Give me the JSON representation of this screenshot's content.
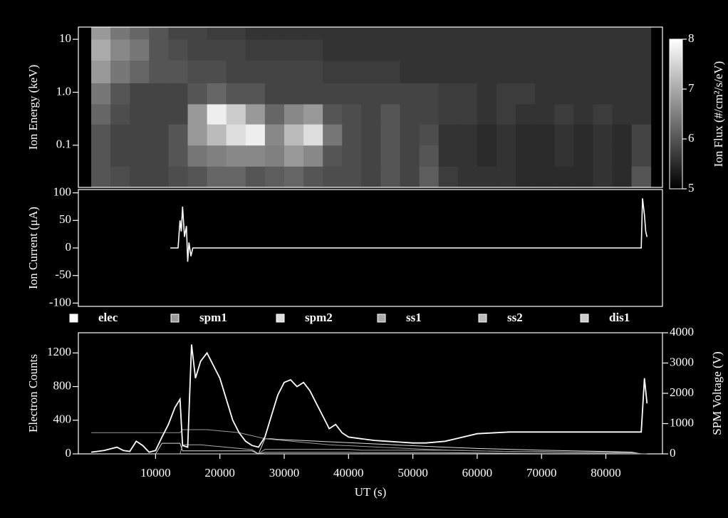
{
  "chart_data": [
    {
      "type": "heatmap",
      "ylabel": "Ion Energy (keV)",
      "colorbar_label": "Ion Flux (#/cm²/s/eV)",
      "xlim": [
        -2000,
        88800
      ],
      "ylim": [
        0.016,
        17
      ],
      "log_y": true,
      "yticks": [
        10,
        {
          "value": 1,
          "label": "1.0"
        },
        0.1
      ],
      "x_bins": [
        0,
        3000,
        6000,
        9000,
        12000,
        15000,
        18000,
        21000,
        24000,
        27000,
        30000,
        33000,
        36000,
        39000,
        42000,
        45000,
        48000,
        51000,
        54000,
        57000,
        60000,
        63000,
        66000,
        69000,
        72000,
        75000,
        78000,
        81000,
        84000,
        87000
      ],
      "y_bins": [
        0.016,
        0.04,
        0.1,
        0.25,
        0.6,
        1.5,
        4,
        10,
        17
      ],
      "z": [
        [
          6.0,
          5.9,
          5.8,
          5.8,
          5.9,
          6.0,
          6.2,
          6.2,
          6.0,
          6.1,
          6.2,
          6.0,
          5.9,
          5.9,
          5.8,
          6.0,
          5.8,
          6.1,
          5.7,
          5.6,
          5.6,
          5.6,
          5.5,
          5.5,
          5.5,
          5.5,
          5.6,
          5.5,
          6.0
        ],
        [
          6.0,
          5.8,
          5.8,
          5.8,
          6.0,
          6.4,
          6.5,
          6.6,
          6.6,
          6.5,
          6.8,
          6.6,
          6.0,
          5.9,
          5.8,
          6.0,
          5.8,
          6.0,
          5.6,
          5.6,
          5.5,
          5.6,
          5.5,
          5.5,
          5.6,
          5.5,
          5.6,
          5.5,
          5.8
        ],
        [
          6.0,
          5.8,
          5.8,
          5.8,
          6.0,
          6.8,
          7.2,
          7.6,
          7.8,
          6.6,
          7.2,
          7.6,
          6.4,
          5.9,
          5.8,
          6.0,
          5.8,
          5.9,
          5.6,
          5.6,
          5.5,
          5.6,
          5.5,
          5.5,
          5.6,
          5.5,
          5.6,
          5.5,
          5.8
        ],
        [
          6.2,
          5.9,
          5.8,
          5.8,
          5.8,
          6.8,
          7.8,
          7.4,
          6.8,
          6.2,
          6.6,
          6.8,
          6.0,
          5.9,
          5.8,
          6.0,
          5.8,
          5.8,
          5.7,
          5.7,
          5.6,
          5.7,
          5.6,
          5.6,
          5.7,
          5.6,
          5.7,
          5.6,
          5.6
        ],
        [
          6.4,
          6.0,
          5.8,
          5.8,
          5.8,
          6.0,
          6.2,
          6.0,
          6.0,
          5.8,
          5.8,
          5.8,
          5.8,
          5.8,
          5.8,
          5.8,
          5.8,
          5.8,
          5.7,
          5.7,
          5.6,
          5.7,
          5.7,
          5.6,
          5.6,
          5.6,
          5.6,
          5.6,
          5.6
        ],
        [
          6.8,
          6.4,
          6.2,
          6.0,
          6.0,
          5.9,
          5.9,
          5.8,
          5.8,
          5.8,
          5.8,
          5.8,
          5.7,
          5.7,
          5.7,
          5.7,
          5.6,
          5.6,
          5.6,
          5.6,
          5.6,
          5.6,
          5.6,
          5.6,
          5.6,
          5.6,
          5.6,
          5.6,
          5.6
        ],
        [
          7.0,
          6.6,
          6.4,
          6.0,
          5.9,
          5.8,
          5.8,
          5.8,
          5.7,
          5.7,
          5.7,
          5.7,
          5.6,
          5.6,
          5.6,
          5.6,
          5.6,
          5.6,
          5.6,
          5.6,
          5.6,
          5.6,
          5.6,
          5.6,
          5.6,
          5.6,
          5.6,
          5.6,
          5.6
        ],
        [
          6.8,
          6.4,
          6.2,
          6.0,
          5.8,
          5.8,
          5.7,
          5.7,
          5.6,
          5.6,
          5.6,
          5.6,
          5.6,
          5.6,
          5.6,
          5.6,
          5.6,
          5.6,
          5.6,
          5.6,
          5.6,
          5.6,
          5.6,
          5.6,
          5.6,
          5.6,
          5.6,
          5.6,
          5.6
        ]
      ],
      "zlim": [
        5,
        8
      ],
      "zticks": [
        5,
        6,
        7,
        8
      ],
      "colors": [
        "#000000",
        "#ffffff"
      ]
    },
    {
      "type": "line",
      "ylabel": "Ion Current (μA)",
      "xlim": [
        -2000,
        88800
      ],
      "ylim": [
        -106,
        106
      ],
      "yticks": [
        100,
        50,
        0,
        -50,
        -100
      ],
      "x": [
        0,
        12300,
        13500,
        13800,
        14000,
        14200,
        14500,
        14800,
        15000,
        15200,
        15500,
        15800,
        16000,
        50000,
        85500,
        85700,
        86000,
        86200,
        86400
      ],
      "values": [
        null,
        0,
        0,
        50,
        30,
        75,
        20,
        40,
        -25,
        10,
        -15,
        0,
        0,
        0,
        0,
        90,
        60,
        30,
        20
      ],
      "color": "#ffffff"
    },
    {
      "type": "line",
      "xlabel": "UT (s)",
      "ylabel": "Electron Counts",
      "y2label": "SPM Voltage (V)",
      "xlim": [
        -2000,
        88800
      ],
      "xticks": [
        10000,
        20000,
        30000,
        40000,
        50000,
        60000,
        70000,
        80000
      ],
      "ylim": [
        0,
        1440
      ],
      "yticks": [
        0,
        400,
        800,
        1200
      ],
      "y2lim": [
        0,
        4000
      ],
      "y2ticks": [
        0,
        1000,
        2000,
        3000,
        4000
      ],
      "x": [
        0,
        2000,
        4000,
        5000,
        6000,
        7000,
        8000,
        9000,
        10000,
        11000,
        12000,
        13000,
        13800,
        14200,
        15000,
        15600,
        16200,
        17000,
        18000,
        19000,
        20000,
        21000,
        22000,
        23000,
        24000,
        25000,
        26000,
        27000,
        28000,
        29000,
        30000,
        31000,
        32000,
        33000,
        34000,
        35000,
        36000,
        37000,
        38000,
        39000,
        40000,
        42000,
        44000,
        46000,
        48000,
        50000,
        52000,
        55000,
        60000,
        65000,
        70000,
        75000,
        80000,
        84000,
        85500,
        86000,
        86400
      ],
      "series": [
        {
          "name": "elec",
          "color": "#ffffff",
          "values": [
            20,
            40,
            80,
            40,
            30,
            150,
            100,
            20,
            40,
            200,
            350,
            550,
            650,
            100,
            80,
            1300,
            900,
            1100,
            1200,
            1050,
            900,
            650,
            400,
            250,
            150,
            100,
            80,
            200,
            450,
            700,
            850,
            880,
            800,
            850,
            750,
            600,
            450,
            300,
            350,
            250,
            200,
            180,
            160,
            150,
            140,
            130,
            130,
            150,
            240,
            260,
            260,
            260,
            260,
            260,
            260,
            900,
            600
          ]
        },
        {
          "name": "spm1",
          "color": "#9a9a9a",
          "axis": "y2",
          "values": [
            700,
            700,
            700,
            700,
            700,
            700,
            700,
            700,
            700,
            700,
            700,
            700,
            700,
            800,
            800,
            800,
            800,
            800,
            800,
            780,
            760,
            740,
            720,
            700,
            650,
            600,
            550,
            500,
            480,
            460,
            440,
            420,
            400,
            380,
            360,
            340,
            320,
            300,
            290,
            280,
            270,
            250,
            230,
            210,
            190,
            170,
            150,
            130,
            100,
            80,
            60,
            50,
            40,
            30,
            0,
            0,
            0
          ]
        },
        {
          "name": "spm2",
          "color": "#dddddd",
          "axis": "y2",
          "values": [
            0,
            0,
            0,
            0,
            0,
            0,
            0,
            0,
            0,
            350,
            350,
            350,
            350,
            100,
            100,
            100,
            100,
            100,
            100,
            100,
            100,
            100,
            100,
            100,
            100,
            100,
            0,
            500,
            500,
            480,
            470,
            460,
            450,
            440,
            430,
            420,
            410,
            400,
            390,
            380,
            370,
            350,
            330,
            310,
            290,
            270,
            250,
            220,
            180,
            150,
            120,
            100,
            80,
            60,
            0,
            0,
            0
          ]
        },
        {
          "name": "ss1",
          "color": "#aaaaaa",
          "axis": "y2",
          "values": [
            0,
            0,
            0,
            0,
            0,
            0,
            0,
            0,
            0,
            0,
            0,
            0,
            0,
            300,
            300,
            300,
            300,
            300,
            280,
            260,
            240,
            220,
            200,
            180,
            160,
            140,
            0,
            150,
            150,
            150,
            150,
            150,
            150,
            150,
            150,
            150,
            150,
            150,
            150,
            150,
            150,
            120,
            120,
            120,
            120,
            120,
            120,
            120,
            100,
            80,
            70,
            60,
            50,
            40,
            0,
            0,
            0
          ]
        },
        {
          "name": "ss2",
          "color": "#bbbbbb",
          "axis": "y2",
          "values": [
            0,
            0,
            0,
            0,
            0,
            0,
            0,
            0,
            0,
            0,
            0,
            0,
            0,
            0,
            0,
            0,
            0,
            0,
            0,
            0,
            0,
            0,
            0,
            0,
            0,
            0,
            0,
            50,
            50,
            50,
            50,
            50,
            50,
            50,
            50,
            50,
            50,
            50,
            50,
            50,
            50,
            40,
            40,
            40,
            40,
            40,
            40,
            40,
            30,
            20,
            10,
            10,
            10,
            0,
            0,
            0,
            0
          ]
        },
        {
          "name": "dis1",
          "color": "#cccccc",
          "axis": "y2",
          "values": [
            0,
            0,
            0,
            0,
            0,
            0,
            0,
            0,
            0,
            0,
            0,
            0,
            0,
            0,
            0,
            0,
            0,
            0,
            0,
            0,
            0,
            0,
            0,
            0,
            0,
            0,
            0,
            0,
            0,
            0,
            0,
            0,
            0,
            0,
            0,
            0,
            0,
            0,
            0,
            0,
            0,
            0,
            0,
            0,
            0,
            0,
            0,
            0,
            0,
            0,
            0,
            0,
            0,
            0,
            0,
            0,
            0
          ]
        }
      ]
    }
  ]
}
